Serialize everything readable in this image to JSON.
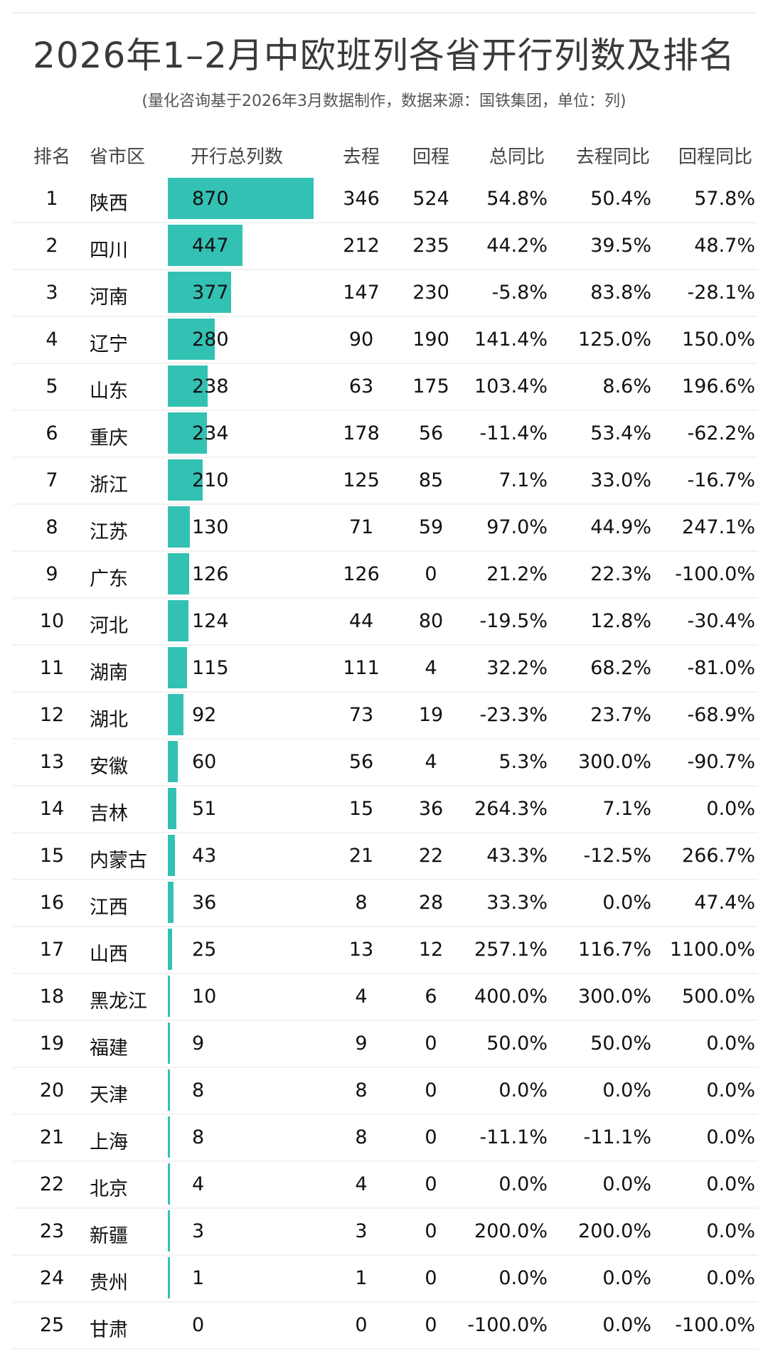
{
  "title": "2026年1–2月中欧班列各省开行列数及排名",
  "subtitle": "(量化咨询基于2026年3月数据制作，数据来源：国铁集团，单位：列)",
  "colors": {
    "bar": "#33C1B4",
    "title": "#3a3a3a",
    "divider": "#f2f2f2"
  },
  "headers": {
    "rank": "排名",
    "province": "省市区",
    "total": "开行总列数",
    "outbound": "去程",
    "return": "回程",
    "total_yoy": "总同比",
    "outbound_yoy": "去程同比",
    "return_yoy": "回程同比"
  },
  "rows": [
    {
      "rank": "1",
      "province": "陕西",
      "total": "870",
      "outbound": "346",
      "return": "524",
      "total_yoy": "54.8%",
      "outbound_yoy": "50.4%",
      "return_yoy": "57.8%"
    },
    {
      "rank": "2",
      "province": "四川",
      "total": "447",
      "outbound": "212",
      "return": "235",
      "total_yoy": "44.2%",
      "outbound_yoy": "39.5%",
      "return_yoy": "48.7%"
    },
    {
      "rank": "3",
      "province": "河南",
      "total": "377",
      "outbound": "147",
      "return": "230",
      "total_yoy": "-5.8%",
      "outbound_yoy": "83.8%",
      "return_yoy": "-28.1%"
    },
    {
      "rank": "4",
      "province": "辽宁",
      "total": "280",
      "outbound": "90",
      "return": "190",
      "total_yoy": "141.4%",
      "outbound_yoy": "125.0%",
      "return_yoy": "150.0%"
    },
    {
      "rank": "5",
      "province": "山东",
      "total": "238",
      "outbound": "63",
      "return": "175",
      "total_yoy": "103.4%",
      "outbound_yoy": "8.6%",
      "return_yoy": "196.6%"
    },
    {
      "rank": "6",
      "province": "重庆",
      "total": "234",
      "outbound": "178",
      "return": "56",
      "total_yoy": "-11.4%",
      "outbound_yoy": "53.4%",
      "return_yoy": "-62.2%"
    },
    {
      "rank": "7",
      "province": "浙江",
      "total": "210",
      "outbound": "125",
      "return": "85",
      "total_yoy": "7.1%",
      "outbound_yoy": "33.0%",
      "return_yoy": "-16.7%"
    },
    {
      "rank": "8",
      "province": "江苏",
      "total": "130",
      "outbound": "71",
      "return": "59",
      "total_yoy": "97.0%",
      "outbound_yoy": "44.9%",
      "return_yoy": "247.1%"
    },
    {
      "rank": "9",
      "province": "广东",
      "total": "126",
      "outbound": "126",
      "return": "0",
      "total_yoy": "21.2%",
      "outbound_yoy": "22.3%",
      "return_yoy": "-100.0%"
    },
    {
      "rank": "10",
      "province": "河北",
      "total": "124",
      "outbound": "44",
      "return": "80",
      "total_yoy": "-19.5%",
      "outbound_yoy": "12.8%",
      "return_yoy": "-30.4%"
    },
    {
      "rank": "11",
      "province": "湖南",
      "total": "115",
      "outbound": "111",
      "return": "4",
      "total_yoy": "32.2%",
      "outbound_yoy": "68.2%",
      "return_yoy": "-81.0%"
    },
    {
      "rank": "12",
      "province": "湖北",
      "total": "92",
      "outbound": "73",
      "return": "19",
      "total_yoy": "-23.3%",
      "outbound_yoy": "23.7%",
      "return_yoy": "-68.9%"
    },
    {
      "rank": "13",
      "province": "安徽",
      "total": "60",
      "outbound": "56",
      "return": "4",
      "total_yoy": "5.3%",
      "outbound_yoy": "300.0%",
      "return_yoy": "-90.7%"
    },
    {
      "rank": "14",
      "province": "吉林",
      "total": "51",
      "outbound": "15",
      "return": "36",
      "total_yoy": "264.3%",
      "outbound_yoy": "7.1%",
      "return_yoy": "0.0%"
    },
    {
      "rank": "15",
      "province": "内蒙古",
      "total": "43",
      "outbound": "21",
      "return": "22",
      "total_yoy": "43.3%",
      "outbound_yoy": "-12.5%",
      "return_yoy": "266.7%"
    },
    {
      "rank": "16",
      "province": "江西",
      "total": "36",
      "outbound": "8",
      "return": "28",
      "total_yoy": "33.3%",
      "outbound_yoy": "0.0%",
      "return_yoy": "47.4%"
    },
    {
      "rank": "17",
      "province": "山西",
      "total": "25",
      "outbound": "13",
      "return": "12",
      "total_yoy": "257.1%",
      "outbound_yoy": "116.7%",
      "return_yoy": "1100.0%"
    },
    {
      "rank": "18",
      "province": "黑龙江",
      "total": "10",
      "outbound": "4",
      "return": "6",
      "total_yoy": "400.0%",
      "outbound_yoy": "300.0%",
      "return_yoy": "500.0%"
    },
    {
      "rank": "19",
      "province": "福建",
      "total": "9",
      "outbound": "9",
      "return": "0",
      "total_yoy": "50.0%",
      "outbound_yoy": "50.0%",
      "return_yoy": "0.0%"
    },
    {
      "rank": "20",
      "province": "天津",
      "total": "8",
      "outbound": "8",
      "return": "0",
      "total_yoy": "0.0%",
      "outbound_yoy": "0.0%",
      "return_yoy": "0.0%"
    },
    {
      "rank": "21",
      "province": "上海",
      "total": "8",
      "outbound": "8",
      "return": "0",
      "total_yoy": "-11.1%",
      "outbound_yoy": "-11.1%",
      "return_yoy": "0.0%"
    },
    {
      "rank": "22",
      "province": "北京",
      "total": "4",
      "outbound": "4",
      "return": "0",
      "total_yoy": "0.0%",
      "outbound_yoy": "0.0%",
      "return_yoy": "0.0%"
    },
    {
      "rank": "23",
      "province": "新疆",
      "total": "3",
      "outbound": "3",
      "return": "0",
      "total_yoy": "200.0%",
      "outbound_yoy": "200.0%",
      "return_yoy": "0.0%"
    },
    {
      "rank": "24",
      "province": "贵州",
      "total": "1",
      "outbound": "1",
      "return": "0",
      "total_yoy": "0.0%",
      "outbound_yoy": "0.0%",
      "return_yoy": "0.0%"
    },
    {
      "rank": "25",
      "province": "甘肃",
      "total": "0",
      "outbound": "0",
      "return": "0",
      "total_yoy": "-100.0%",
      "outbound_yoy": "0.0%",
      "return_yoy": "-100.0%"
    }
  ],
  "chart_data": {
    "type": "table",
    "title": "2026年1–2月中欧班列各省开行列数及排名",
    "subtitle": "(量化咨询基于2026年3月数据制作，数据来源：国铁集团，单位：列)",
    "columns": [
      "排名",
      "省市区",
      "开行总列数",
      "去程",
      "回程",
      "总同比",
      "去程同比",
      "回程同比"
    ],
    "embedded_bar_column": "开行总列数",
    "bar_color": "#33C1B4",
    "categories": [
      "陕西",
      "四川",
      "河南",
      "辽宁",
      "山东",
      "重庆",
      "浙江",
      "江苏",
      "广东",
      "河北",
      "湖南",
      "湖北",
      "安徽",
      "吉林",
      "内蒙古",
      "江西",
      "山西",
      "黑龙江",
      "福建",
      "天津",
      "上海",
      "北京",
      "新疆",
      "贵州",
      "甘肃"
    ],
    "series": [
      {
        "name": "开行总列数",
        "values": [
          870,
          447,
          377,
          280,
          238,
          234,
          210,
          130,
          126,
          124,
          115,
          92,
          60,
          51,
          43,
          36,
          25,
          10,
          9,
          8,
          8,
          4,
          3,
          1,
          0
        ]
      },
      {
        "name": "去程",
        "values": [
          346,
          212,
          147,
          90,
          63,
          178,
          125,
          71,
          126,
          44,
          111,
          73,
          56,
          15,
          21,
          8,
          13,
          4,
          9,
          8,
          8,
          4,
          3,
          1,
          0
        ]
      },
      {
        "name": "回程",
        "values": [
          524,
          235,
          230,
          190,
          175,
          56,
          85,
          59,
          0,
          80,
          4,
          19,
          4,
          36,
          22,
          28,
          12,
          6,
          0,
          0,
          0,
          0,
          0,
          0,
          0
        ]
      },
      {
        "name": "总同比(%)",
        "values": [
          54.8,
          44.2,
          -5.8,
          141.4,
          103.4,
          -11.4,
          7.1,
          97.0,
          21.2,
          -19.5,
          32.2,
          -23.3,
          5.3,
          264.3,
          43.3,
          33.3,
          257.1,
          400.0,
          50.0,
          0.0,
          -11.1,
          0.0,
          200.0,
          0.0,
          -100.0
        ]
      },
      {
        "name": "去程同比(%)",
        "values": [
          50.4,
          39.5,
          83.8,
          125.0,
          8.6,
          53.4,
          33.0,
          44.9,
          22.3,
          12.8,
          68.2,
          23.7,
          300.0,
          7.1,
          -12.5,
          0.0,
          116.7,
          300.0,
          50.0,
          0.0,
          -11.1,
          0.0,
          200.0,
          0.0,
          0.0
        ]
      },
      {
        "name": "回程同比(%)",
        "values": [
          57.8,
          48.7,
          -28.1,
          150.0,
          196.6,
          -62.2,
          -16.7,
          247.1,
          -100.0,
          -30.4,
          -81.0,
          -68.9,
          -90.7,
          0.0,
          266.7,
          47.4,
          1100.0,
          500.0,
          0.0,
          0.0,
          0.0,
          0.0,
          0.0,
          0.0,
          -100.0
        ]
      }
    ]
  }
}
